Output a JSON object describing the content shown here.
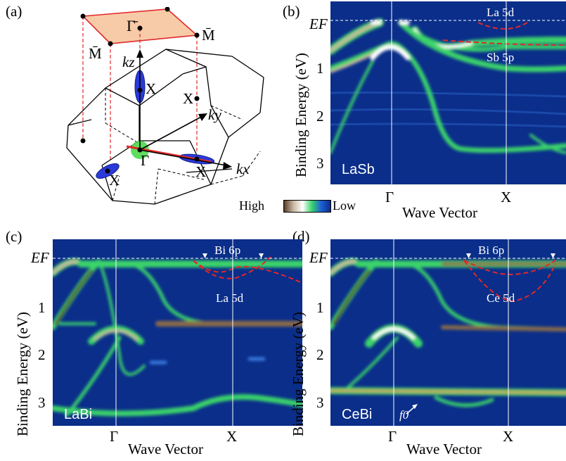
{
  "panel_labels": {
    "a": "(a)",
    "b": "(b)",
    "c": "(c)",
    "d": "(d)"
  },
  "bz": {
    "gamma_bar": "Γ̄",
    "m_bar_left": "M̄",
    "m_bar_right": "M̄",
    "kz": "kz",
    "ky": "ky",
    "kx": "kx",
    "x_top": "X",
    "x_right": "X",
    "x_left": "X",
    "x_bottom": "X",
    "gamma": "Γ"
  },
  "colorbar": {
    "high": "High",
    "low": "Low",
    "colors": [
      "#5a3b2a",
      "#c8b8a0",
      "#ffffff",
      "#3bd36a",
      "#1c5fd8",
      "#0a2e8a"
    ]
  },
  "common": {
    "ylabel": "Binding Energy (eV)",
    "xlabel": "Wave Vector",
    "ef": "EF",
    "yticks": [
      "1",
      "2",
      "3"
    ],
    "xticks": [
      "Γ",
      "X"
    ]
  },
  "panels": {
    "b": {
      "sample": "LaSb",
      "ann1": "La 5d",
      "ann2": "Sb 5p"
    },
    "c": {
      "sample": "LaBi",
      "ann1": "Bi 6p",
      "ann2": "La 5d"
    },
    "d": {
      "sample": "CeBi",
      "ann1": "Bi 6p",
      "ann2": "Ce 5d",
      "ann3": "f0"
    }
  }
}
